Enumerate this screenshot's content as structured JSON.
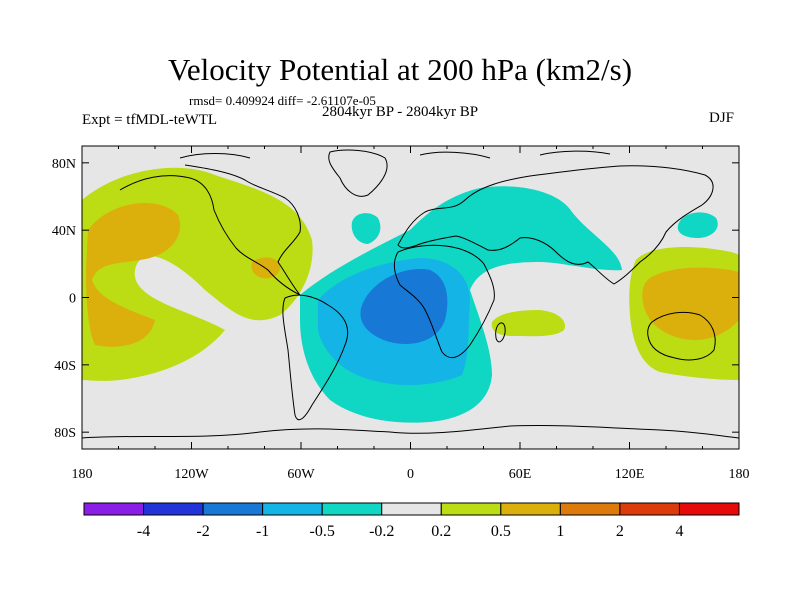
{
  "header": {
    "title": "Velocity Potential at 200 hPa (km2/s)",
    "stats": "rmsd= 0.409924 diff= -2.61107e-05",
    "experiment": "Expt = tfMDL-teWTL",
    "period": "2804kyr BP - 2804kyr BP",
    "season": "DJF"
  },
  "axes": {
    "lon_ticks": [
      "180",
      "120W",
      "60W",
      "0",
      "60E",
      "120E",
      "180"
    ],
    "lat_ticks": [
      "80N",
      "40N",
      "0",
      "40S",
      "80S"
    ]
  },
  "colorbar": {
    "labels": [
      "-4",
      "-2",
      "-1",
      "-0.5",
      "-0.2",
      "0.2",
      "0.5",
      "1",
      "2",
      "4"
    ],
    "colors": [
      "#8a1ee6",
      "#2233d9",
      "#1778d6",
      "#14b4e6",
      "#10d6c4",
      "#e6e6e6",
      "#bcdc14",
      "#dcb00c",
      "#dc7a0c",
      "#dc3c0c",
      "#e60a0a"
    ]
  },
  "map": {
    "background_color": "#e6e6e6",
    "coastline_color": "#000000"
  }
}
